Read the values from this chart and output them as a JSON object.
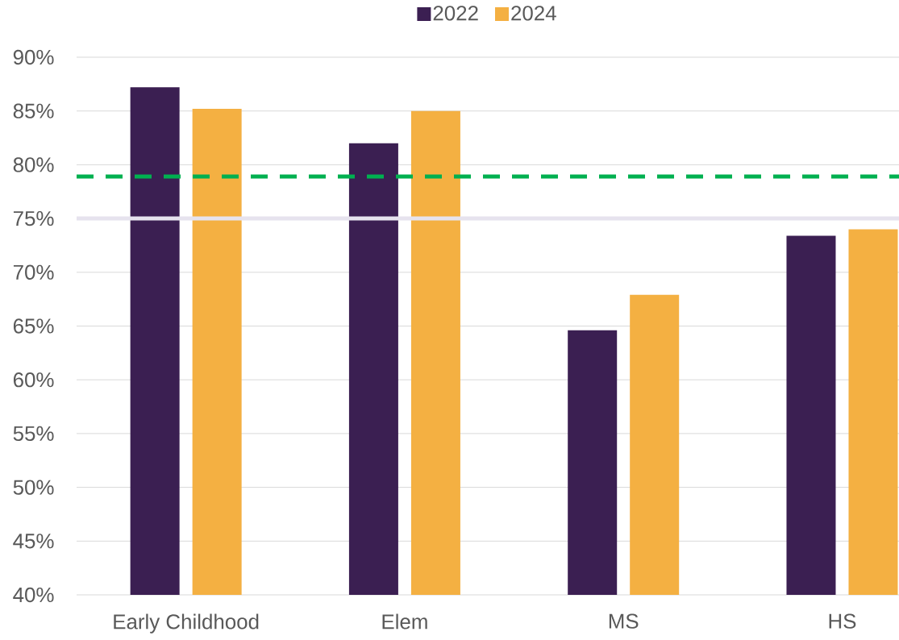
{
  "chart_data": {
    "type": "bar",
    "categories": [
      "Early Childhood",
      "Elem",
      "MS",
      "HS"
    ],
    "series": [
      {
        "name": "2022",
        "color": "#3b1f52",
        "values": [
          87.2,
          82.0,
          64.6,
          73.4
        ]
      },
      {
        "name": "2024",
        "color": "#f4b042",
        "values": [
          85.2,
          85.0,
          67.9,
          74.0
        ]
      }
    ],
    "ylim": [
      40,
      90
    ],
    "yticks": [
      {
        "value": 40,
        "label": "40%"
      },
      {
        "value": 45,
        "label": "45%"
      },
      {
        "value": 50,
        "label": "50%"
      },
      {
        "value": 55,
        "label": "55%"
      },
      {
        "value": 60,
        "label": "60%"
      },
      {
        "value": 65,
        "label": "65%"
      },
      {
        "value": 70,
        "label": "70%"
      },
      {
        "value": 75,
        "label": "75%"
      },
      {
        "value": 80,
        "label": "80%"
      },
      {
        "value": 85,
        "label": "85%"
      },
      {
        "value": 90,
        "label": "90%"
      }
    ],
    "grid": "y",
    "legend": "top",
    "ref_lines": [
      {
        "axis": "y",
        "value": 75,
        "color": "#e6e3ee",
        "line_style": "solid"
      },
      {
        "axis": "y",
        "value": 78.9,
        "color": "#00b050",
        "line_style": "dashed"
      }
    ]
  }
}
